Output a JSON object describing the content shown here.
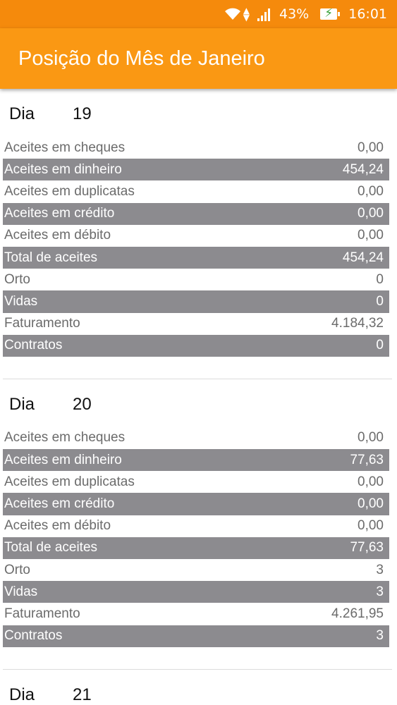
{
  "status_bar": {
    "wifi_icon": "wifi-icon",
    "signal_icon": "signal-icon",
    "battery_percent": "43%",
    "battery_icon": "battery-charging-icon",
    "time": "16:01",
    "bg_color": "#f58a0c"
  },
  "app_bar": {
    "title": "Posição do Mês de Janeiro",
    "bg_color": "#fa9813"
  },
  "days": [
    {
      "label": "Dia",
      "number": "19",
      "rows": [
        {
          "label": "Aceites em cheques",
          "value": "0,00"
        },
        {
          "label": "Aceites em dinheiro",
          "value": "454,24"
        },
        {
          "label": "Aceites em duplicatas",
          "value": "0,00"
        },
        {
          "label": "Aceites em crédito",
          "value": "0,00"
        },
        {
          "label": "Aceites em débito",
          "value": "0,00"
        },
        {
          "label": "Total de aceites",
          "value": "454,24"
        },
        {
          "label": "Orto",
          "value": "0"
        },
        {
          "label": "Vidas",
          "value": "0"
        },
        {
          "label": "Faturamento",
          "value": "4.184,32"
        },
        {
          "label": "Contratos",
          "value": "0"
        }
      ]
    },
    {
      "label": "Dia",
      "number": "20",
      "rows": [
        {
          "label": "Aceites em cheques",
          "value": "0,00"
        },
        {
          "label": "Aceites em dinheiro",
          "value": "77,63"
        },
        {
          "label": "Aceites em duplicatas",
          "value": "0,00"
        },
        {
          "label": "Aceites em crédito",
          "value": "0,00"
        },
        {
          "label": "Aceites em débito",
          "value": "0,00"
        },
        {
          "label": "Total de aceites",
          "value": "77,63"
        },
        {
          "label": "Orto",
          "value": "3"
        },
        {
          "label": "Vidas",
          "value": "3"
        },
        {
          "label": "Faturamento",
          "value": "4.261,95"
        },
        {
          "label": "Contratos",
          "value": "3"
        }
      ]
    },
    {
      "label": "Dia",
      "number": "21",
      "rows": []
    }
  ],
  "colors": {
    "shaded_row": "#8c8b8f",
    "text_gray": "#6b6b6b"
  }
}
